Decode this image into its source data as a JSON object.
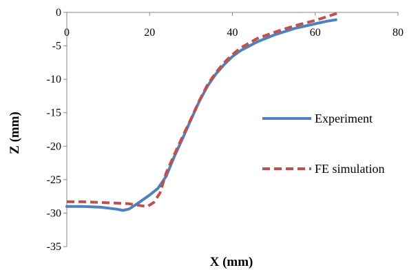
{
  "chart_data": {
    "type": "line",
    "title": "",
    "xlabel": "X (mm)",
    "ylabel": "Z (mm)",
    "xlim": [
      0,
      80
    ],
    "ylim": [
      -35,
      0
    ],
    "x_ticks": [
      0,
      20,
      40,
      60,
      80
    ],
    "y_ticks": [
      0,
      -5,
      -10,
      -15,
      -20,
      -25,
      -30,
      -35
    ],
    "x_axis_position": "top (at Z = 0)",
    "grid": false,
    "legend_position": "right",
    "series": [
      {
        "name": "Experiment",
        "color": "#4f81bd",
        "dash": "solid",
        "points": [
          [
            0,
            -29.0
          ],
          [
            4,
            -29.0
          ],
          [
            8,
            -29.1
          ],
          [
            12,
            -29.4
          ],
          [
            13.5,
            -29.6
          ],
          [
            15,
            -29.4
          ],
          [
            17,
            -28.6
          ],
          [
            20,
            -27.3
          ],
          [
            22,
            -26.3
          ],
          [
            24,
            -24.5
          ],
          [
            26,
            -21.5
          ],
          [
            28,
            -18.8
          ],
          [
            30,
            -16.0
          ],
          [
            32,
            -13.3
          ],
          [
            34,
            -11.0
          ],
          [
            36,
            -9.2
          ],
          [
            38,
            -7.8
          ],
          [
            40,
            -6.6
          ],
          [
            42,
            -5.7
          ],
          [
            46,
            -4.4
          ],
          [
            50,
            -3.4
          ],
          [
            55,
            -2.4
          ],
          [
            60,
            -1.7
          ],
          [
            63,
            -1.3
          ],
          [
            65,
            -1.1
          ]
        ]
      },
      {
        "name": "FE simulation",
        "color": "#c0504d",
        "dash": "dashed",
        "points": [
          [
            0,
            -28.3
          ],
          [
            4,
            -28.3
          ],
          [
            8,
            -28.4
          ],
          [
            12,
            -28.5
          ],
          [
            15,
            -28.6
          ],
          [
            18,
            -28.9
          ],
          [
            19.5,
            -29.0
          ],
          [
            21,
            -28.4
          ],
          [
            22.5,
            -27.0
          ],
          [
            24,
            -24.0
          ],
          [
            26,
            -21.2
          ],
          [
            28,
            -18.5
          ],
          [
            30,
            -15.9
          ],
          [
            32,
            -13.2
          ],
          [
            34,
            -10.8
          ],
          [
            36,
            -9.0
          ],
          [
            38,
            -7.5
          ],
          [
            40,
            -6.3
          ],
          [
            42,
            -5.3
          ],
          [
            46,
            -3.9
          ],
          [
            50,
            -3.0
          ],
          [
            55,
            -2.0
          ],
          [
            60,
            -1.2
          ],
          [
            63,
            -0.6
          ],
          [
            66,
            0.0
          ]
        ]
      }
    ]
  }
}
